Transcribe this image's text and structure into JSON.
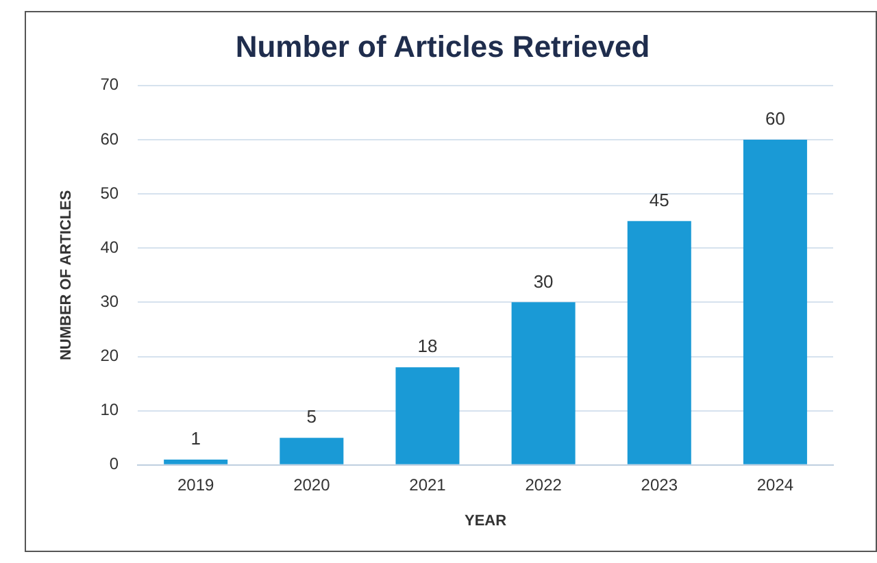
{
  "chart_data": {
    "type": "bar",
    "title": "Number of Articles Retrieved",
    "xlabel": "YEAR",
    "ylabel": "NUMBER OF ARTICLES",
    "categories": [
      "2019",
      "2020",
      "2021",
      "2022",
      "2023",
      "2024"
    ],
    "values": [
      1,
      5,
      18,
      30,
      45,
      60
    ],
    "color": "#1a9ad6",
    "ylim": [
      0,
      70
    ],
    "yticks": [
      0,
      10,
      20,
      30,
      40,
      50,
      60,
      70
    ],
    "grid": "y",
    "legend": false,
    "data_labels": true
  }
}
